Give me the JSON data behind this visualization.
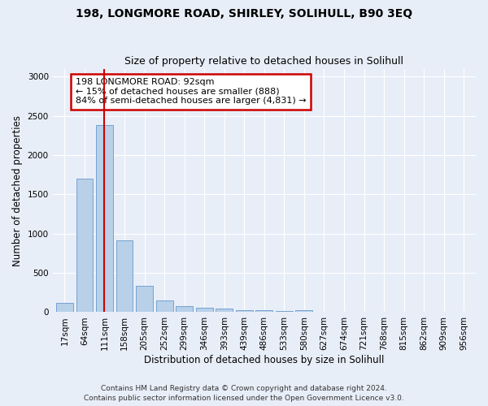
{
  "title1": "198, LONGMORE ROAD, SHIRLEY, SOLIHULL, B90 3EQ",
  "title2": "Size of property relative to detached houses in Solihull",
  "xlabel": "Distribution of detached houses by size in Solihull",
  "ylabel": "Number of detached properties",
  "categories": [
    "17sqm",
    "64sqm",
    "111sqm",
    "158sqm",
    "205sqm",
    "252sqm",
    "299sqm",
    "346sqm",
    "393sqm",
    "439sqm",
    "486sqm",
    "533sqm",
    "580sqm",
    "627sqm",
    "674sqm",
    "721sqm",
    "768sqm",
    "815sqm",
    "862sqm",
    "909sqm",
    "956sqm"
  ],
  "values": [
    120,
    1700,
    2380,
    910,
    340,
    145,
    80,
    55,
    42,
    30,
    22,
    18,
    25,
    0,
    0,
    0,
    0,
    0,
    0,
    0,
    0
  ],
  "bar_color": "#b8d0e8",
  "bar_edge_color": "#6699cc",
  "vline_x": 2,
  "vline_color": "#cc0000",
  "annotation_text": "198 LONGMORE ROAD: 92sqm\n← 15% of detached houses are smaller (888)\n84% of semi-detached houses are larger (4,831) →",
  "annotation_box_color": "#ffffff",
  "annotation_box_edge": "#cc0000",
  "ylim": [
    0,
    3100
  ],
  "yticks": [
    0,
    500,
    1000,
    1500,
    2000,
    2500,
    3000
  ],
  "footer1": "Contains HM Land Registry data © Crown copyright and database right 2024.",
  "footer2": "Contains public sector information licensed under the Open Government Licence v3.0.",
  "background_color": "#e8eef8",
  "plot_bg_color": "#e8eef8",
  "grid_color": "#ffffff",
  "title1_fontsize": 10,
  "title2_fontsize": 9,
  "xlabel_fontsize": 8.5,
  "ylabel_fontsize": 8.5,
  "tick_fontsize": 7.5,
  "footer_fontsize": 6.5,
  "annot_fontsize": 8
}
